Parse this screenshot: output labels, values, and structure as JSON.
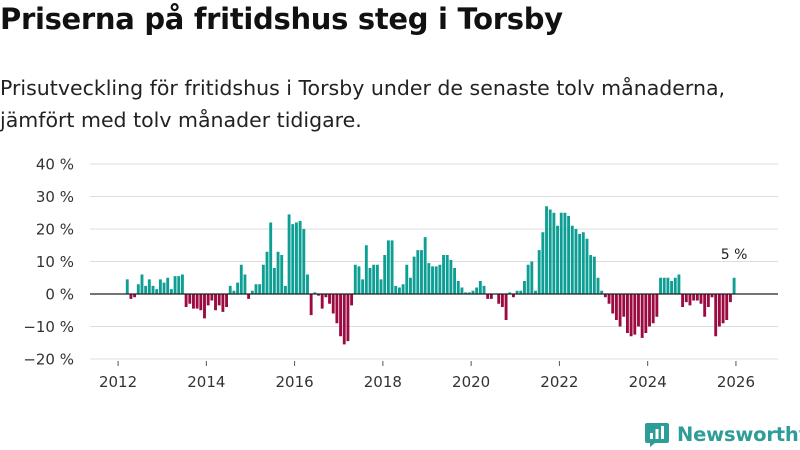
{
  "title": "Priserna på fritidshus steg i Torsby",
  "subtitle": "Prisutveckling för fritidshus i Torsby under de senaste tolv månaderna, jämfört med tolv månader tidigare.",
  "brand": {
    "name": "Newsworthy",
    "icon": "newsworthy-logo-icon",
    "color": "#2e9c98"
  },
  "colors": {
    "positive": "#0d9e94",
    "negative": "#9b0a40",
    "grid": "#dddddd",
    "zero_line": "#222222"
  },
  "chart_data": {
    "type": "bar",
    "title": "Priserna på fritidshus steg i Torsby",
    "xlabel": "",
    "ylabel": "",
    "ylim": [
      -20,
      40
    ],
    "y_ticks": [
      -20,
      -10,
      0,
      10,
      20,
      30,
      40
    ],
    "y_tick_labels": [
      "−20 %",
      "−10 %",
      "0 %",
      "10 %",
      "20 %",
      "30 %",
      "40 %"
    ],
    "x_ticks": [
      2012,
      2014,
      2016,
      2018,
      2020,
      2022,
      2024,
      2026
    ],
    "x_tick_labels": [
      "2012",
      "2014",
      "2016",
      "2018",
      "2020",
      "2022",
      "2024",
      "2026"
    ],
    "start": {
      "year": 2012,
      "month": 1
    },
    "unit": "%",
    "values": [
      0,
      0,
      4.5,
      -1.5,
      -1,
      3,
      6,
      2.5,
      4.5,
      2.5,
      1.5,
      4.5,
      3.5,
      5,
      1.5,
      5.5,
      5.5,
      6,
      -4,
      -3,
      -4.5,
      -4.5,
      -5,
      -7.5,
      -3.5,
      -2,
      -5,
      -3.5,
      -5.5,
      -4,
      2.5,
      1,
      3.5,
      9,
      6,
      -1.5,
      1,
      3,
      3,
      9,
      13,
      22,
      8,
      13,
      12,
      2.5,
      24.5,
      21.5,
      22,
      22.5,
      20,
      6,
      -6.5,
      0.5,
      -0.5,
      -4.5,
      -1,
      -3,
      -6,
      -9,
      -13,
      -15.5,
      -14.5,
      -3.5,
      9,
      8.5,
      4.5,
      15,
      8,
      9,
      9,
      4.5,
      12,
      16.5,
      16.5,
      2.5,
      2,
      3,
      9,
      5,
      11.5,
      13.5,
      13.5,
      17.5,
      9.5,
      8.5,
      8.5,
      9,
      12,
      12,
      10.5,
      8,
      4,
      2,
      0.5,
      0.5,
      1,
      2,
      4,
      2.5,
      -1.5,
      -1.5,
      0,
      -3,
      -4,
      -8,
      0.5,
      -1,
      1,
      1,
      4,
      9,
      10,
      1,
      13.5,
      19,
      27,
      26,
      25,
      21,
      25,
      25,
      24,
      21,
      20,
      18.5,
      19,
      17,
      12,
      11.5,
      5,
      1,
      -1,
      -3,
      -6,
      -8,
      -10,
      -7,
      -12,
      -13,
      -12.5,
      -10,
      -13.5,
      -12,
      -10,
      -9,
      -7,
      5,
      5,
      5,
      4,
      5,
      6,
      -4,
      -2.5,
      -3.5,
      -2,
      -2,
      -3,
      -7,
      -4,
      -1,
      -13,
      -10,
      -9,
      -8,
      -2.5,
      5
    ],
    "annotations": [
      {
        "label": "5 %",
        "target": "last_bar"
      }
    ]
  }
}
